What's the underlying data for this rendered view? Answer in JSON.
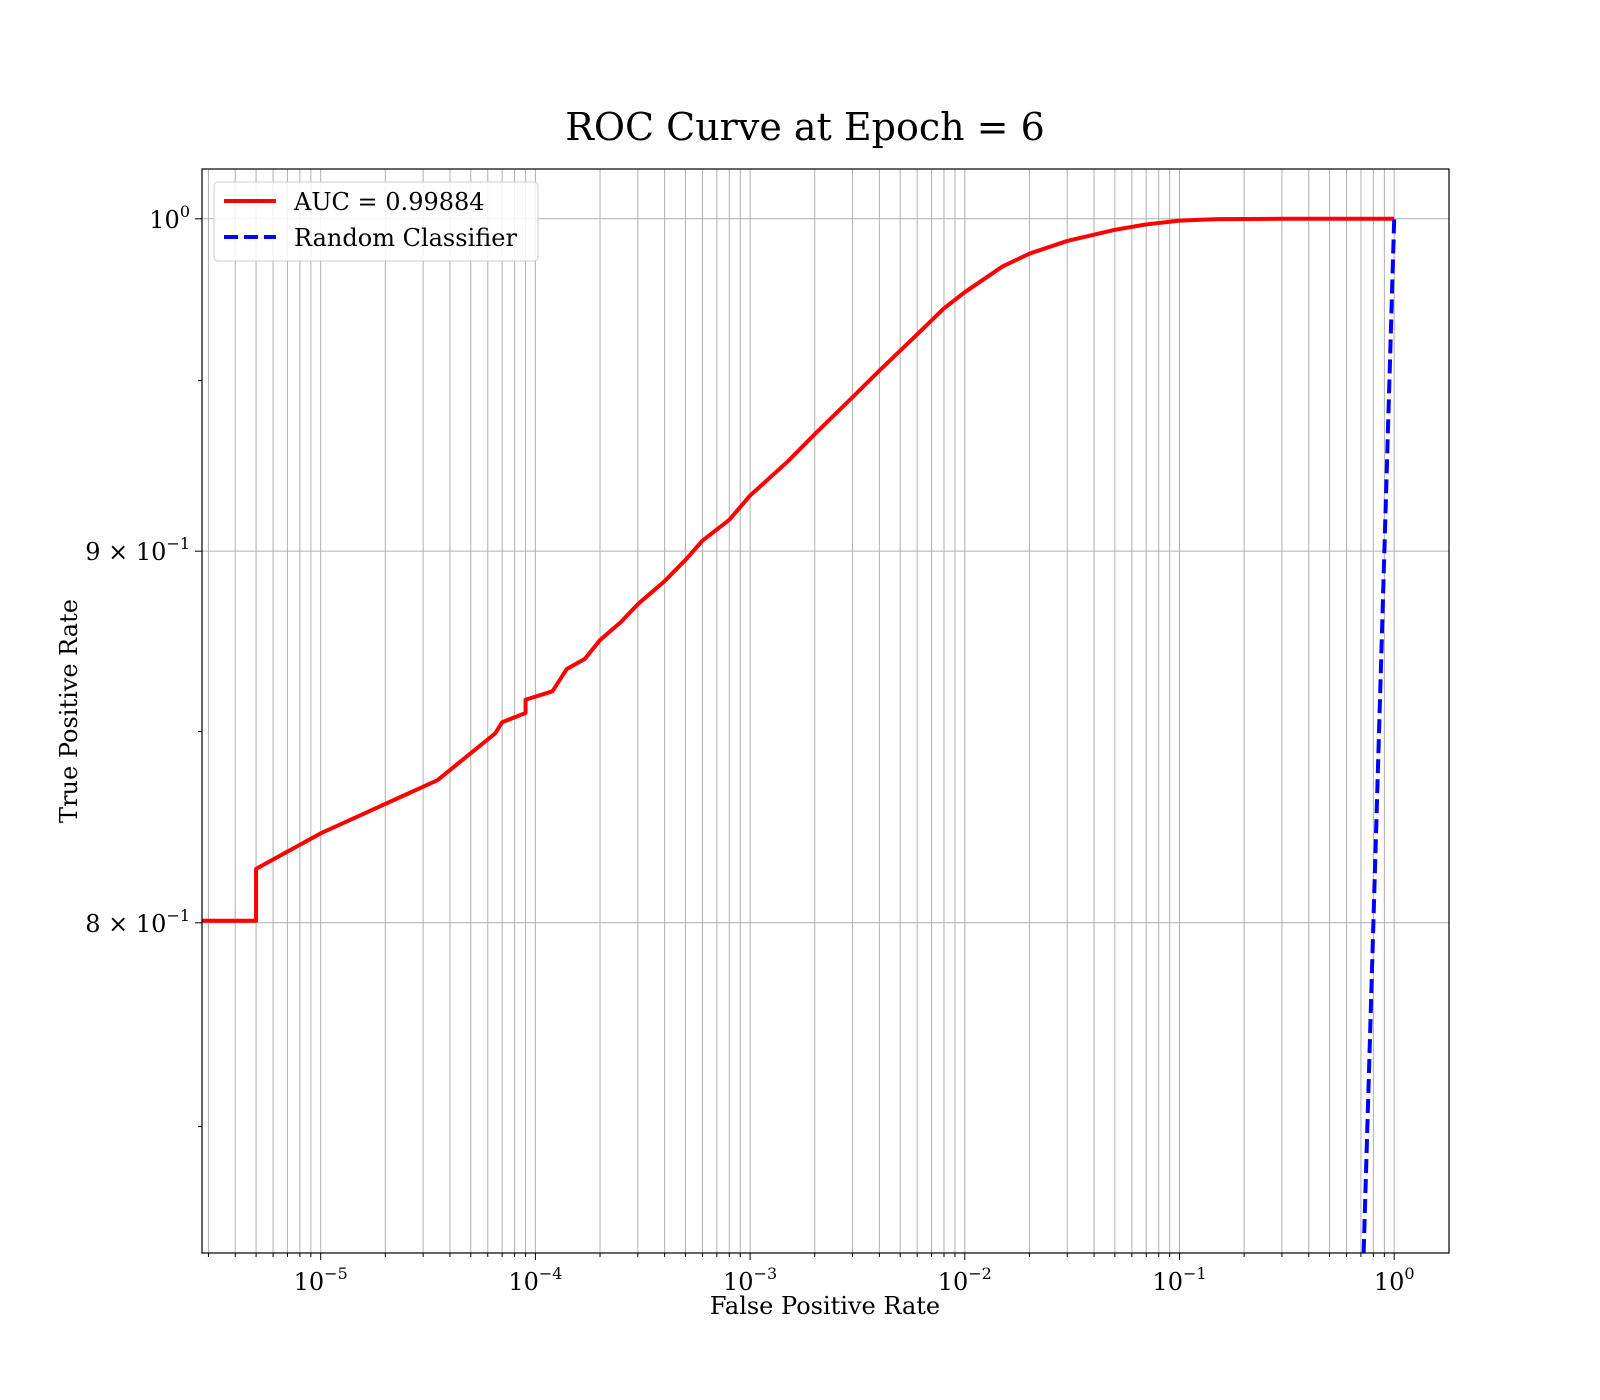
{
  "chart_data": {
    "type": "line",
    "title": "ROC Curve at Epoch = 6",
    "xlabel": "False Positive Rate",
    "ylabel": "True Positive Rate",
    "xscale": "log",
    "yscale": "log",
    "xlim": [
      2.8e-06,
      1.8
    ],
    "ylim": [
      0.7205,
      1.0159
    ],
    "grid": true,
    "legend_position": "top-left",
    "x_ticks": [
      {
        "base": "10",
        "exp": "−5",
        "value": 1e-05
      },
      {
        "base": "10",
        "exp": "−4",
        "value": 0.0001
      },
      {
        "base": "10",
        "exp": "−3",
        "value": 0.001
      },
      {
        "base": "10",
        "exp": "−2",
        "value": 0.01
      },
      {
        "base": "10",
        "exp": "−1",
        "value": 0.1
      },
      {
        "base": "10",
        "exp": "0",
        "value": 1
      }
    ],
    "y_ticks": [
      {
        "base": "10",
        "exp": "0",
        "value": 1.0
      },
      {
        "base": "9 × 10",
        "exp": "−1",
        "value": 0.9
      },
      {
        "base": "8 × 10",
        "exp": "−1",
        "value": 0.8
      }
    ],
    "series": [
      {
        "name": "AUC = 0.99884",
        "color": "#ff0000",
        "style": "solid",
        "points": [
          [
            2.8e-06,
            0.8005
          ],
          [
            5e-06,
            0.8005
          ],
          [
            5e-06,
            0.8138
          ],
          [
            1e-05,
            0.823
          ],
          [
            3.5e-05,
            0.837
          ],
          [
            6.5e-05,
            0.8495
          ],
          [
            7e-05,
            0.8525
          ],
          [
            9e-05,
            0.855
          ],
          [
            9e-05,
            0.8586
          ],
          [
            0.00012,
            0.8609
          ],
          [
            0.00014,
            0.867
          ],
          [
            0.00017,
            0.8698
          ],
          [
            0.0002,
            0.875
          ],
          [
            0.00025,
            0.88
          ],
          [
            0.0003,
            0.885
          ],
          [
            0.0004,
            0.8915
          ],
          [
            0.0005,
            0.8975
          ],
          [
            0.0006,
            0.903
          ],
          [
            0.0008,
            0.909
          ],
          [
            0.001,
            0.916
          ],
          [
            0.0015,
            0.926
          ],
          [
            0.002,
            0.934
          ],
          [
            0.003,
            0.945
          ],
          [
            0.004,
            0.953
          ],
          [
            0.006,
            0.964
          ],
          [
            0.008,
            0.972
          ],
          [
            0.01,
            0.977
          ],
          [
            0.015,
            0.985
          ],
          [
            0.02,
            0.989
          ],
          [
            0.03,
            0.993
          ],
          [
            0.05,
            0.9965
          ],
          [
            0.07,
            0.9982
          ],
          [
            0.1,
            0.9994
          ],
          [
            0.15,
            0.9999
          ],
          [
            0.3,
            1.0
          ],
          [
            1.0,
            1.0
          ]
        ]
      },
      {
        "name": "Random Classifier",
        "color": "#0000ff",
        "style": "dashed",
        "points": [
          [
            0.7205,
            0.7205
          ],
          [
            0.75,
            0.75
          ],
          [
            0.8,
            0.8
          ],
          [
            0.85,
            0.85
          ],
          [
            0.9,
            0.9
          ],
          [
            0.95,
            0.95
          ],
          [
            1.0,
            1.0
          ]
        ]
      }
    ]
  }
}
